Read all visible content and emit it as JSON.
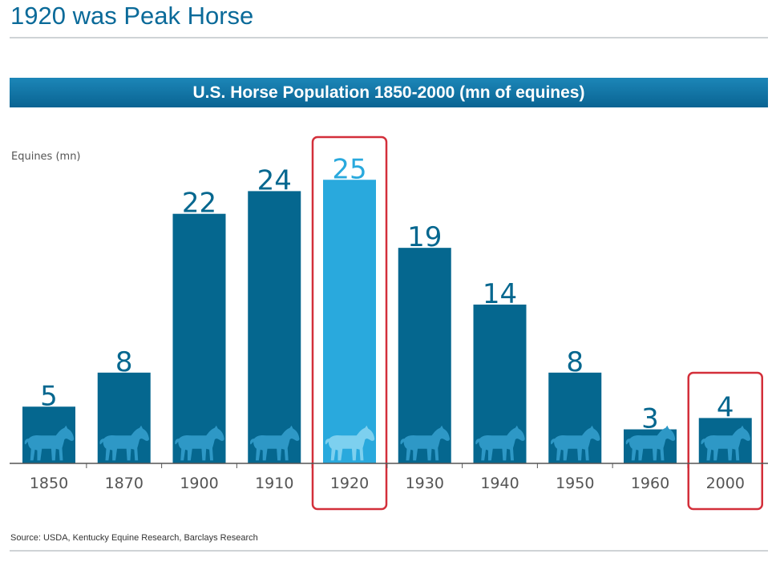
{
  "page": {
    "title": "1920 was Peak Horse",
    "source": "Source: USDA, Kentucky Equine Research, Barclays Research"
  },
  "colors": {
    "title": "#0a6a99",
    "banner": "#0b6c9b",
    "bar": "#05678f",
    "highlight_bar": "#29a9dd",
    "horse": "#2e98c6",
    "highlight_horse": "#7dd0ef",
    "highlight_box": "#d32f3a",
    "axis": "#555555"
  },
  "chart_data": {
    "type": "bar",
    "title": "U.S. Horse Population 1850-2000 (mn of equines)",
    "ylabel": "Equines (mn)",
    "xlabel": "",
    "categories": [
      "1850",
      "1870",
      "1900",
      "1910",
      "1920",
      "1930",
      "1940",
      "1950",
      "1960",
      "2000"
    ],
    "values": [
      5,
      8,
      22,
      24,
      25,
      19,
      14,
      8,
      3,
      4
    ],
    "ylim": [
      0,
      27
    ],
    "highlighted": [
      "1920",
      "2000"
    ],
    "grid": false,
    "legend": "none"
  }
}
